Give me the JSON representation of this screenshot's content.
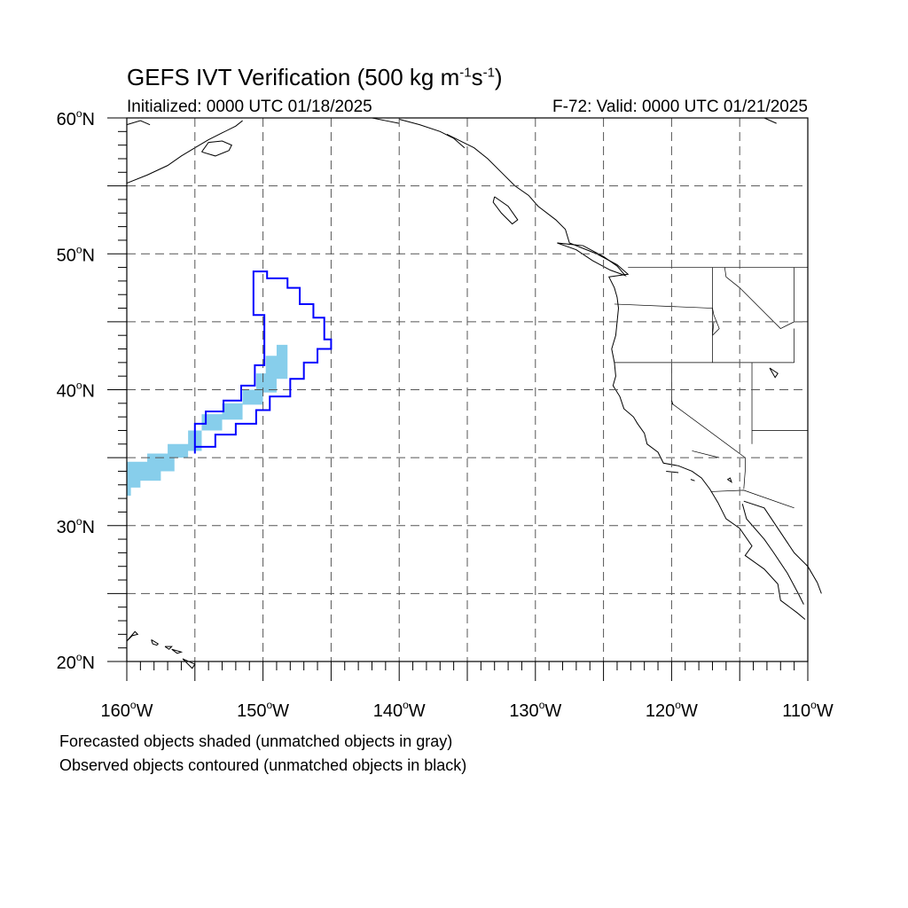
{
  "header": {
    "title_main": "GEFS IVT Verification (500 kg m",
    "title_exp1": "-1",
    "title_mid": "s",
    "title_exp2": "-1",
    "title_end": ")",
    "initialized": "Initialized: 0000 UTC 01/18/2025",
    "valid": "F-72: Valid: 0000 UTC 01/21/2025"
  },
  "map": {
    "lat_labels": [
      "60",
      "50",
      "40",
      "30",
      "20"
    ],
    "lat_values": [
      60,
      50,
      40,
      30,
      20
    ],
    "lon_labels": [
      "160",
      "150",
      "140",
      "130",
      "120",
      "110"
    ],
    "lon_values": [
      -160,
      -150,
      -140,
      -130,
      -120,
      -110
    ],
    "lat_hemisphere": "N",
    "lon_hemisphere": "W",
    "degree": "o",
    "extent": {
      "lon_min": -160,
      "lon_max": -110,
      "lat_min": 20,
      "lat_max": 60
    },
    "gridline_style": "dashed",
    "colors": {
      "forecast_matched": "#87ceeb",
      "observed_matched": "#0000ff",
      "coastline": "#000000",
      "grid": "#555555"
    }
  },
  "footer": {
    "note_forecast": "Forecasted objects shaded (unmatched objects in gray)",
    "note_observed": "Observed objects contoured (unmatched objects in black)"
  }
}
